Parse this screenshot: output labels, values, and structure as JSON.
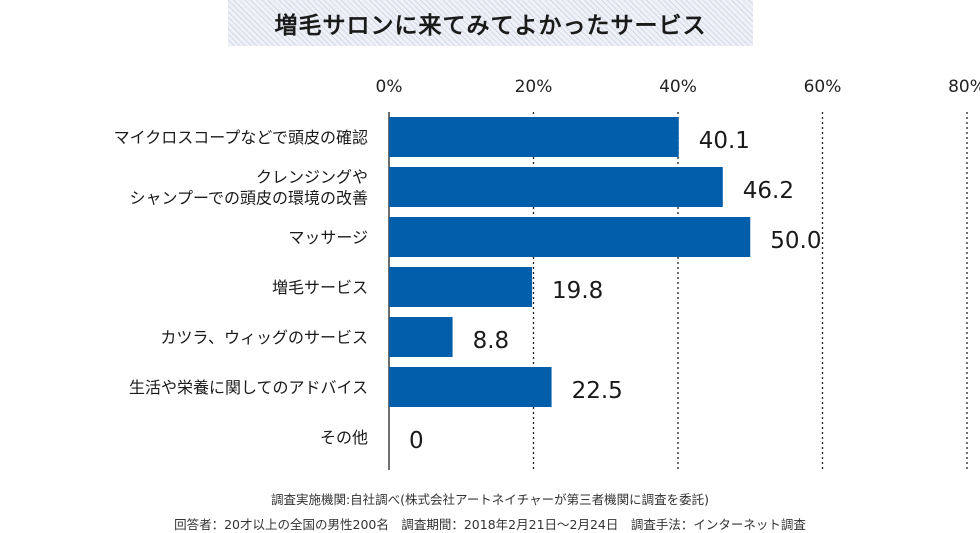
{
  "chart_data": {
    "type": "bar",
    "orientation": "horizontal",
    "title": "増毛サロンに来てみてよかったサービス",
    "categories": [
      [
        "マイクロスコープなどで頭皮の確認"
      ],
      [
        "クレンジングや",
        "シャンプーでの頭皮の環境の改善"
      ],
      [
        "マッサージ"
      ],
      [
        "増毛サービス"
      ],
      [
        "カツラ、ウィッグのサービス"
      ],
      [
        "生活や栄養に関してのアドバイス"
      ],
      [
        "その他"
      ]
    ],
    "values": [
      40.1,
      46.2,
      50.0,
      19.8,
      8.8,
      22.5,
      0
    ],
    "value_labels": [
      "40.1",
      "46.2",
      "50.0",
      "19.8",
      "8.8",
      "22.5",
      "0"
    ],
    "xlim": [
      0,
      80
    ],
    "xticks": [
      0,
      20,
      40,
      60,
      80
    ],
    "xtick_labels": [
      "0%",
      "20%",
      "40%",
      "60%",
      "80%"
    ],
    "grid": "vertical dotted lines",
    "bar_color": "#005eab"
  },
  "footnotes": {
    "line1": "調査実施機関:自社調べ(株式会社アートネイチャーが第三者機関に調査を委託)",
    "line2": "回答者：20才以上の全国の男性200名　調査期間：2018年2月21日〜2月24日　調査手法：インターネット調査"
  }
}
